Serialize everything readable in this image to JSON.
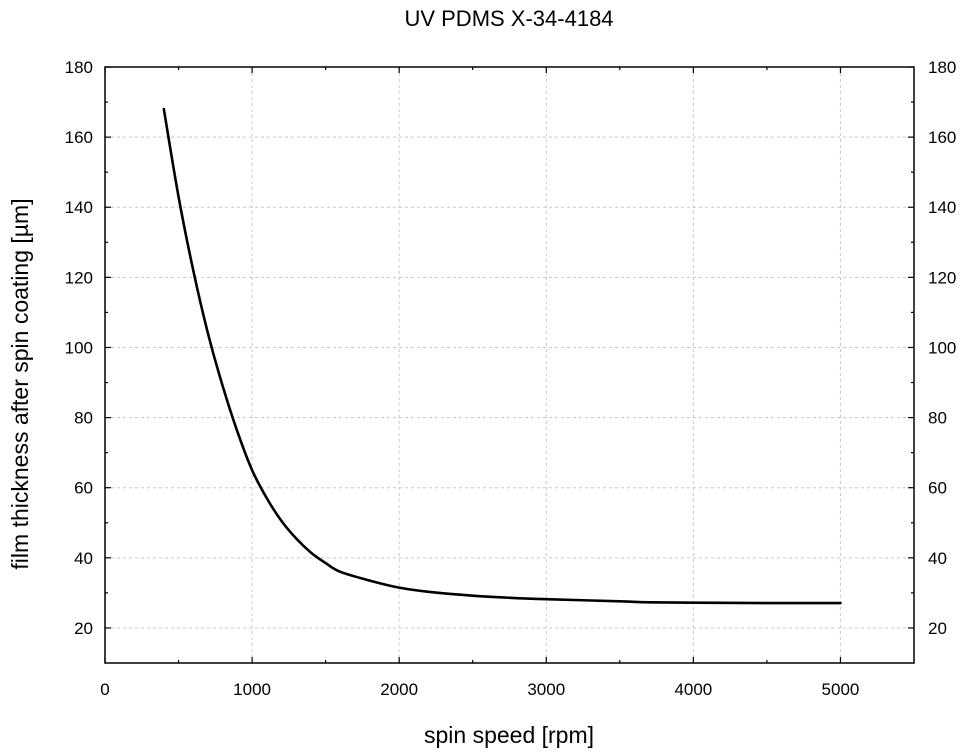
{
  "chart_data": {
    "type": "line",
    "title": "UV PDMS X-34-4184",
    "xlabel": "spin speed [rpm]",
    "ylabel": "film thickness after spin coating [µm]",
    "xlim": [
      0,
      5500
    ],
    "ylim": [
      10,
      180
    ],
    "xticks": [
      0,
      1000,
      2000,
      3000,
      4000,
      5000
    ],
    "yticks": [
      20,
      40,
      60,
      80,
      100,
      120,
      140,
      160,
      180
    ],
    "right_axis_ticks": [
      20,
      40,
      60,
      80,
      100,
      120,
      140,
      160,
      180
    ],
    "grid": true,
    "series": [
      {
        "x": [
          400,
          500,
          600,
          700,
          800,
          900,
          1000,
          1100,
          1200,
          1300,
          1400,
          1500,
          1600,
          1800,
          2000,
          2200,
          2500,
          2800,
          3000,
          3500,
          3700,
          4000,
          4500,
          5000
        ],
        "y": [
          168,
          143,
          122,
          104,
          89,
          76,
          65,
          57,
          50.5,
          45.5,
          41.5,
          38.5,
          36,
          33.5,
          31.5,
          30.3,
          29.2,
          28.5,
          28.2,
          27.6,
          27.3,
          27.2,
          27.1,
          27.1
        ]
      }
    ]
  }
}
